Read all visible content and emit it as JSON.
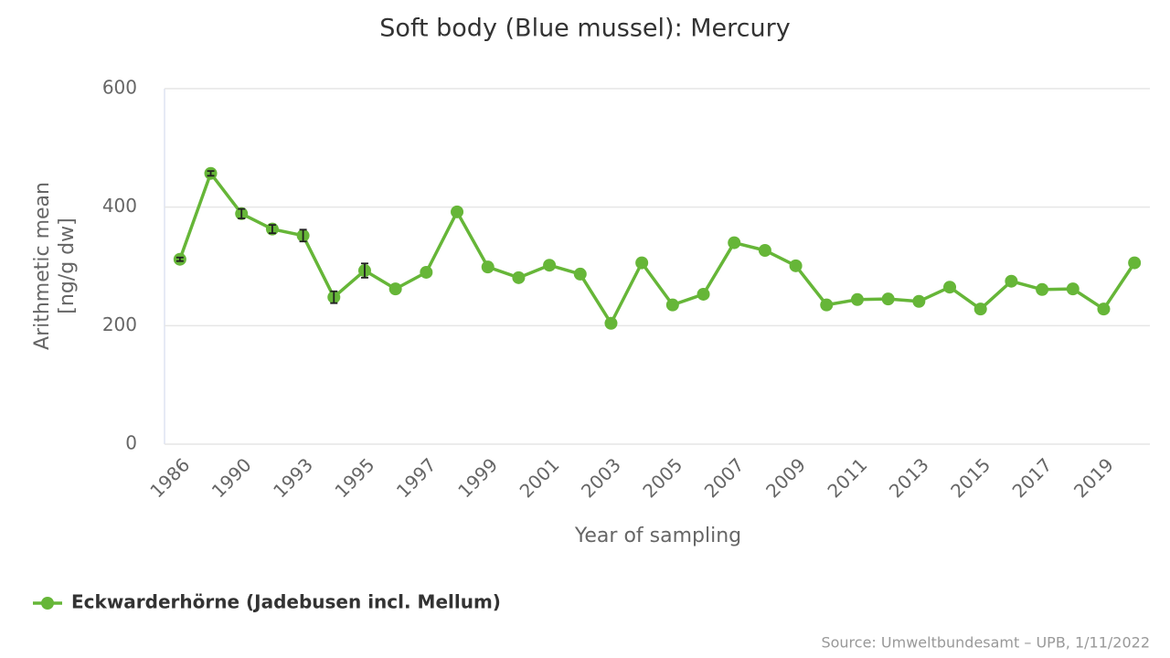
{
  "chart_data": {
    "type": "line",
    "title": "Soft body (Blue mussel): Mercury",
    "x_label": "Year of sampling",
    "y_label": [
      "Arithmetic mean",
      "[ng/g dw]"
    ],
    "source": "Source: Umweltbundesamt – UPB, 1/11/2022",
    "categories": [
      "1986",
      null,
      "1990",
      null,
      "1993",
      null,
      "1995",
      null,
      "1997",
      null,
      "1999",
      null,
      "2001",
      null,
      "2003",
      null,
      "2005",
      null,
      "2007",
      null,
      "2009",
      null,
      "2011",
      null,
      "2013",
      null,
      "2015",
      null,
      "2017",
      null,
      "2019",
      null
    ],
    "series": [
      {
        "name": "Eckwarderhörne (Jadebusen incl. Mellum)",
        "color": "#66b638",
        "values": [
          312,
          457,
          389,
          363,
          352,
          248,
          293,
          262,
          290,
          392,
          299,
          281,
          302,
          287,
          204,
          306,
          235,
          253,
          340,
          327,
          301,
          235,
          244,
          245,
          241,
          265,
          228,
          275,
          261,
          262,
          228,
          306
        ],
        "errors": [
          3,
          4,
          8,
          7,
          10,
          10,
          12,
          null,
          null,
          null,
          null,
          null,
          null,
          null,
          null,
          null,
          null,
          null,
          null,
          null,
          null,
          null,
          null,
          null,
          null,
          null,
          null,
          null,
          null,
          null,
          null,
          null
        ]
      }
    ],
    "ylim": [
      0,
      600
    ],
    "yticks": [
      0,
      200,
      400,
      600
    ],
    "grid": true,
    "legend": "bottom-left"
  }
}
